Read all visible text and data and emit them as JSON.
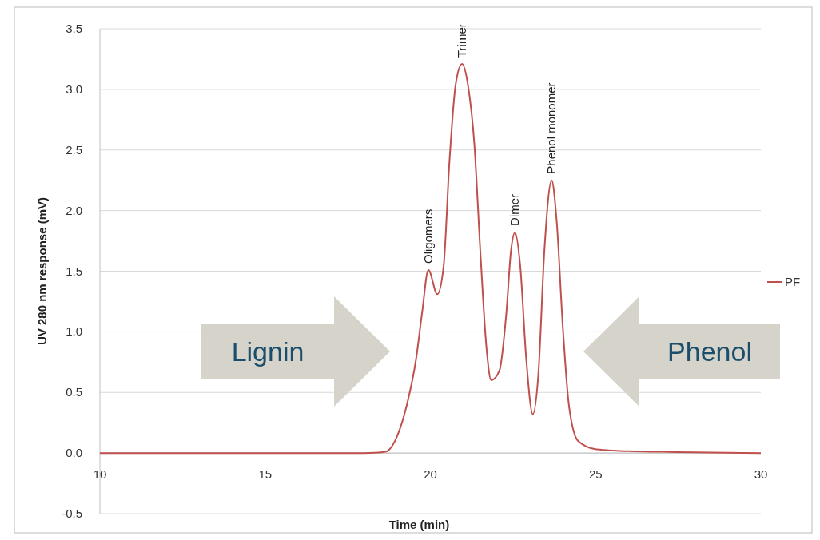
{
  "chart_data": {
    "type": "line",
    "xlabel": "Time (min)",
    "ylabel": "UV 280 nm response (mV)",
    "xlim": [
      10,
      30
    ],
    "xticks": [
      10,
      15,
      20,
      25,
      30
    ],
    "ylim": [
      -0.5,
      3.5
    ],
    "yticks": [
      {
        "value": -0.5,
        "label": "-0.5"
      },
      {
        "value": 0,
        "label": "0.0"
      },
      {
        "value": 0.5,
        "label": "0.5"
      },
      {
        "value": 1,
        "label": "1.0"
      },
      {
        "value": 1.5,
        "label": "1.5"
      },
      {
        "value": 2,
        "label": "2.0"
      },
      {
        "value": 2.5,
        "label": "2.5"
      },
      {
        "value": 3,
        "label": "3.0"
      },
      {
        "value": 3.5,
        "label": "3.5"
      }
    ],
    "grid": "y",
    "legend": "right",
    "marker": "none",
    "line_style": "solid",
    "series": [
      {
        "name": "PF",
        "color": "#c0504d",
        "x": [
          10,
          12,
          14,
          16,
          18,
          18.3,
          18.64,
          19.01,
          19.29,
          19.57,
          19.75,
          19.94,
          20.21,
          20.4,
          20.58,
          20.77,
          20.96,
          21.14,
          21.33,
          21.51,
          21.7,
          21.84,
          22.09,
          22.3,
          22.44,
          22.56,
          22.72,
          22.9,
          23.1,
          23.27,
          23.45,
          23.67,
          23.82,
          24.01,
          24.19,
          24.47,
          25.03,
          26,
          27,
          28,
          30
        ],
        "values": [
          0,
          0,
          0,
          0,
          0,
          0.002,
          0.01,
          0.15,
          0.4,
          0.78,
          1.16,
          1.51,
          1.31,
          1.54,
          2.42,
          3.05,
          3.21,
          3.03,
          2.55,
          1.67,
          0.86,
          0.6,
          0.68,
          1.16,
          1.67,
          1.82,
          1.54,
          0.78,
          0.32,
          0.66,
          1.67,
          2.25,
          1.92,
          1.03,
          0.4,
          0.1,
          0.03,
          0.015,
          0.01,
          0.005,
          0
        ]
      }
    ],
    "annotations": [
      {
        "text": "Oligomers",
        "x": 19.94,
        "y": 1.51
      },
      {
        "text": "Trimer",
        "x": 20.96,
        "y": 3.21
      },
      {
        "text": "Dimer",
        "x": 22.56,
        "y": 1.82
      },
      {
        "text": "Phenol monomer",
        "x": 23.67,
        "y": 2.25
      },
      "Lignin",
      "Phenol"
    ]
  }
}
